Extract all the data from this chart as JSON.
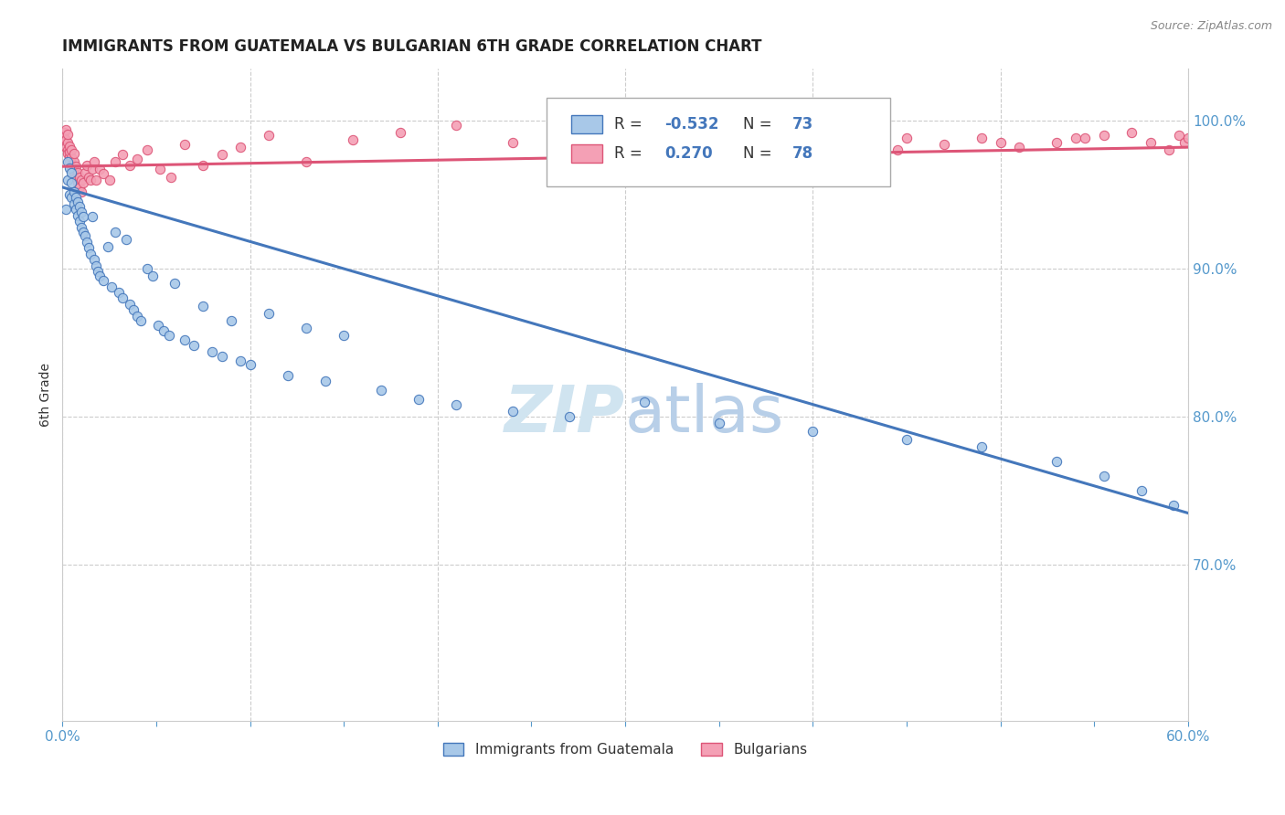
{
  "title": "IMMIGRANTS FROM GUATEMALA VS BULGARIAN 6TH GRADE CORRELATION CHART",
  "source": "Source: ZipAtlas.com",
  "ylabel": "6th Grade",
  "ytick_values": [
    0.7,
    0.8,
    0.9,
    1.0
  ],
  "xmin": 0.0,
  "xmax": 0.6,
  "ymin": 0.595,
  "ymax": 1.035,
  "blue_color": "#a8c8e8",
  "pink_color": "#f4a0b5",
  "blue_line_color": "#4477bb",
  "pink_line_color": "#dd5577",
  "watermark_color": "#d0e4f0",
  "blue_trend_x0": 0.0,
  "blue_trend_y0": 0.955,
  "blue_trend_x1": 0.6,
  "blue_trend_y1": 0.735,
  "pink_trend_x0": 0.0,
  "pink_trend_y0": 0.969,
  "pink_trend_x1": 0.6,
  "pink_trend_y1": 0.982,
  "blue_x": [
    0.002,
    0.003,
    0.003,
    0.004,
    0.004,
    0.005,
    0.005,
    0.005,
    0.006,
    0.006,
    0.007,
    0.007,
    0.008,
    0.008,
    0.009,
    0.009,
    0.01,
    0.01,
    0.011,
    0.011,
    0.012,
    0.013,
    0.014,
    0.015,
    0.016,
    0.017,
    0.018,
    0.019,
    0.02,
    0.022,
    0.024,
    0.026,
    0.028,
    0.03,
    0.032,
    0.034,
    0.036,
    0.038,
    0.04,
    0.042,
    0.045,
    0.048,
    0.051,
    0.054,
    0.057,
    0.06,
    0.065,
    0.07,
    0.075,
    0.08,
    0.085,
    0.09,
    0.095,
    0.1,
    0.11,
    0.12,
    0.13,
    0.14,
    0.15,
    0.17,
    0.19,
    0.21,
    0.24,
    0.27,
    0.31,
    0.35,
    0.4,
    0.45,
    0.49,
    0.53,
    0.555,
    0.575,
    0.592
  ],
  "blue_y": [
    0.94,
    0.96,
    0.972,
    0.95,
    0.968,
    0.948,
    0.958,
    0.965,
    0.944,
    0.952,
    0.94,
    0.948,
    0.936,
    0.945,
    0.932,
    0.942,
    0.928,
    0.938,
    0.925,
    0.935,
    0.922,
    0.918,
    0.914,
    0.91,
    0.935,
    0.906,
    0.902,
    0.898,
    0.895,
    0.892,
    0.915,
    0.888,
    0.925,
    0.884,
    0.88,
    0.92,
    0.876,
    0.872,
    0.868,
    0.865,
    0.9,
    0.895,
    0.862,
    0.858,
    0.855,
    0.89,
    0.852,
    0.848,
    0.875,
    0.844,
    0.841,
    0.865,
    0.838,
    0.835,
    0.87,
    0.828,
    0.86,
    0.824,
    0.855,
    0.818,
    0.812,
    0.808,
    0.804,
    0.8,
    0.81,
    0.796,
    0.79,
    0.785,
    0.78,
    0.77,
    0.76,
    0.75,
    0.74
  ],
  "pink_x": [
    0.001,
    0.001,
    0.002,
    0.002,
    0.002,
    0.003,
    0.003,
    0.003,
    0.003,
    0.004,
    0.004,
    0.004,
    0.004,
    0.005,
    0.005,
    0.005,
    0.005,
    0.006,
    0.006,
    0.006,
    0.007,
    0.007,
    0.008,
    0.008,
    0.009,
    0.009,
    0.01,
    0.01,
    0.011,
    0.012,
    0.013,
    0.014,
    0.015,
    0.016,
    0.017,
    0.018,
    0.02,
    0.022,
    0.025,
    0.028,
    0.032,
    0.036,
    0.04,
    0.045,
    0.052,
    0.058,
    0.065,
    0.075,
    0.085,
    0.095,
    0.11,
    0.13,
    0.155,
    0.18,
    0.21,
    0.24,
    0.27,
    0.31,
    0.35,
    0.4,
    0.45,
    0.5,
    0.54,
    0.57,
    0.58,
    0.59,
    0.595,
    0.598,
    0.6,
    0.555,
    0.545,
    0.53,
    0.51,
    0.49,
    0.47,
    0.445,
    0.415,
    0.385
  ],
  "pink_y": [
    0.988,
    0.992,
    0.982,
    0.987,
    0.994,
    0.98,
    0.985,
    0.991,
    0.978,
    0.976,
    0.972,
    0.979,
    0.983,
    0.97,
    0.975,
    0.98,
    0.968,
    0.965,
    0.972,
    0.978,
    0.962,
    0.969,
    0.958,
    0.965,
    0.955,
    0.962,
    0.952,
    0.96,
    0.958,
    0.965,
    0.97,
    0.962,
    0.96,
    0.967,
    0.972,
    0.96,
    0.967,
    0.964,
    0.96,
    0.972,
    0.977,
    0.97,
    0.974,
    0.98,
    0.967,
    0.962,
    0.984,
    0.97,
    0.977,
    0.982,
    0.99,
    0.972,
    0.987,
    0.992,
    0.997,
    0.985,
    0.988,
    0.992,
    0.985,
    0.992,
    0.988,
    0.985,
    0.988,
    0.992,
    0.985,
    0.98,
    0.99,
    0.985,
    0.988,
    0.99,
    0.988,
    0.985,
    0.982,
    0.988,
    0.984,
    0.98,
    0.976,
    0.972
  ]
}
